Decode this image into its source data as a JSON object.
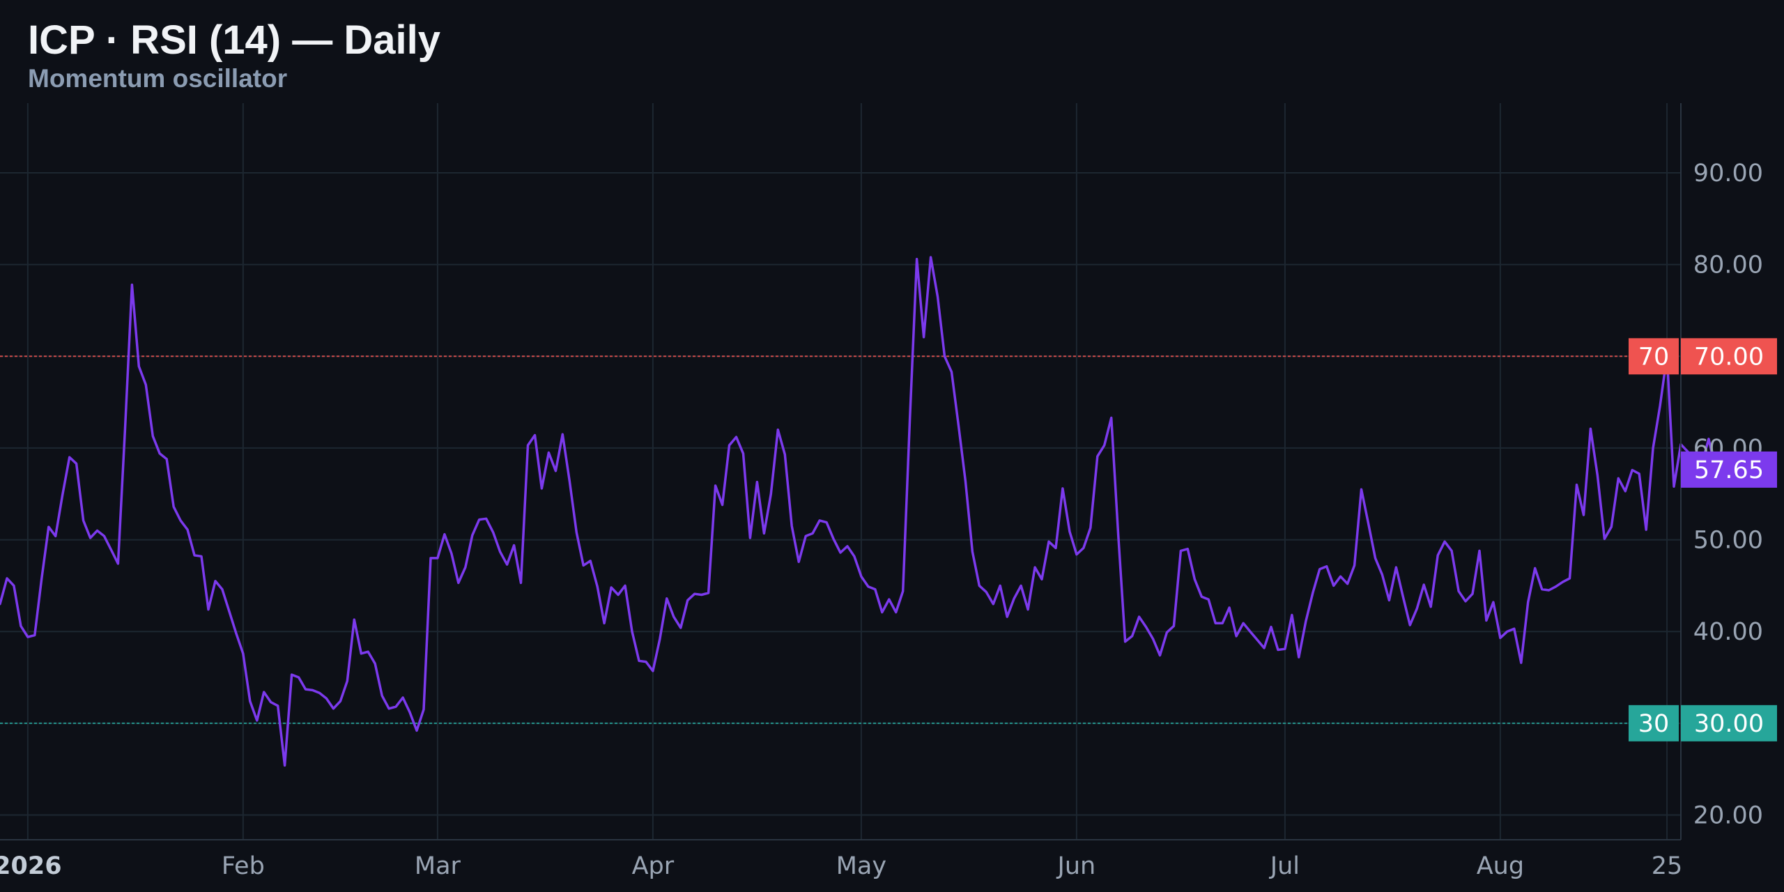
{
  "title": "ICP · RSI (14) — Daily",
  "subtitle": "Momentum oscillator",
  "colors": {
    "background": "#0d1017",
    "grid": "#1d2731",
    "rsi_line": "#7c3aed",
    "overbought": "#ef5350",
    "oversold": "#26a69a",
    "axis_text": "#9aa5b4"
  },
  "levels": {
    "overbought": {
      "label": "70",
      "axis_label": "70.00",
      "value": 70
    },
    "oversold": {
      "label": "30",
      "axis_label": "30.00",
      "value": 30
    }
  },
  "last_value": {
    "label": "57.65",
    "value": 57.65
  },
  "chart_data": {
    "type": "line",
    "title": "ICP · RSI (14) — Daily",
    "subtitle": "Momentum oscillator",
    "ylim": [
      17.3,
      97.6
    ],
    "xlim": [
      "2025-12-28",
      "2026-08-27"
    ],
    "y_ticks": [
      20,
      30,
      40,
      50,
      60,
      70,
      80,
      90
    ],
    "y_tick_labels": [
      "20.00",
      "30.00",
      "40.00",
      "50.00",
      "60.00",
      "70.00",
      "80.00",
      "90.00"
    ],
    "x_ticks": [
      {
        "date": "2026-01-01",
        "label": "2026",
        "bold": true
      },
      {
        "date": "2026-02-01",
        "label": "Feb"
      },
      {
        "date": "2026-03-01",
        "label": "Mar"
      },
      {
        "date": "2026-04-01",
        "label": "Apr"
      },
      {
        "date": "2026-05-01",
        "label": "May"
      },
      {
        "date": "2026-06-01",
        "label": "Jun"
      },
      {
        "date": "2026-07-01",
        "label": "Jul"
      },
      {
        "date": "2026-08-01",
        "label": "Aug"
      },
      {
        "date": "2026-08-25",
        "label": "25"
      }
    ],
    "grid": true,
    "start_date": "2025-12-28",
    "series": [
      {
        "values": [
          43.0,
          45.8,
          45.0,
          40.6,
          39.4,
          39.6,
          45.8,
          51.4,
          50.4,
          54.9,
          59.0,
          58.3,
          52.1,
          50.2,
          51.0,
          50.4,
          48.9,
          47.4,
          62.0,
          77.8,
          68.9,
          66.9,
          61.3,
          59.4,
          58.8,
          53.6,
          52.1,
          51.1,
          48.3,
          48.2,
          42.4,
          45.5,
          44.6,
          42.2,
          39.8,
          37.6,
          32.4,
          30.3,
          33.4,
          32.3,
          31.9,
          25.4,
          35.3,
          35.0,
          33.7,
          33.6,
          33.3,
          32.7,
          31.6,
          32.4,
          34.6,
          41.3,
          37.6,
          37.8,
          36.5,
          33.0,
          31.6,
          31.8,
          32.8,
          31.2,
          29.2,
          31.5,
          48.0,
          48.0,
          50.6,
          48.5,
          45.3,
          47.0,
          50.5,
          52.2,
          52.3,
          50.8,
          48.7,
          47.3,
          49.4,
          45.3,
          60.3,
          61.4,
          55.6,
          59.5,
          57.5,
          61.5,
          56.4,
          50.8,
          47.2,
          47.7,
          44.9,
          40.9,
          44.8,
          44.0,
          45.0,
          40.0,
          36.8,
          36.7,
          35.7,
          39.2,
          43.6,
          41.6,
          40.4,
          43.4,
          44.1,
          44.0,
          44.2,
          55.9,
          53.8,
          60.3,
          61.2,
          59.4,
          50.2,
          56.3,
          50.7,
          55.0,
          62.0,
          59.3,
          51.5,
          47.6,
          50.4,
          50.7,
          52.1,
          51.9,
          50.1,
          48.6,
          49.3,
          48.2,
          46.0,
          44.9,
          44.6,
          42.1,
          43.5,
          42.1,
          44.4,
          63.3,
          80.6,
          72.1,
          80.8,
          76.5,
          70.0,
          68.3,
          62.5,
          56.4,
          48.7,
          45.0,
          44.3,
          43.0,
          45.0,
          41.6,
          43.6,
          45.0,
          42.4,
          47.0,
          45.7,
          49.8,
          49.1,
          55.6,
          50.9,
          48.4,
          49.1,
          51.3,
          59.1,
          60.3,
          63.3,
          50.5,
          38.9,
          39.5,
          41.6,
          40.5,
          39.2,
          37.4,
          39.9,
          40.6,
          48.8,
          49.0,
          45.7,
          43.8,
          43.5,
          40.9,
          40.9,
          42.6,
          39.5,
          40.9,
          40.0,
          39.1,
          38.2,
          40.5,
          38.0,
          38.1,
          41.8,
          37.2,
          41.1,
          44.2,
          46.8,
          47.1,
          45.0,
          46.0,
          45.2,
          47.2,
          55.5,
          51.8,
          48.0,
          46.2,
          43.4,
          47.0,
          43.8,
          40.7,
          42.5,
          45.1,
          42.7,
          48.3,
          49.8,
          48.8,
          44.4,
          43.3,
          44.1,
          48.8,
          41.2,
          43.2,
          39.3,
          40.0,
          40.3,
          36.6,
          43.2,
          46.9,
          44.6,
          44.5,
          44.9,
          45.4,
          45.8,
          56.0,
          52.7,
          62.1,
          57.0,
          50.1,
          51.4,
          56.7,
          55.3,
          57.6,
          57.2,
          51.1,
          60.0,
          64.6,
          70.1,
          55.8,
          60.4,
          59.6,
          57.1,
          58.2,
          61.0,
          57.65
        ]
      }
    ]
  }
}
